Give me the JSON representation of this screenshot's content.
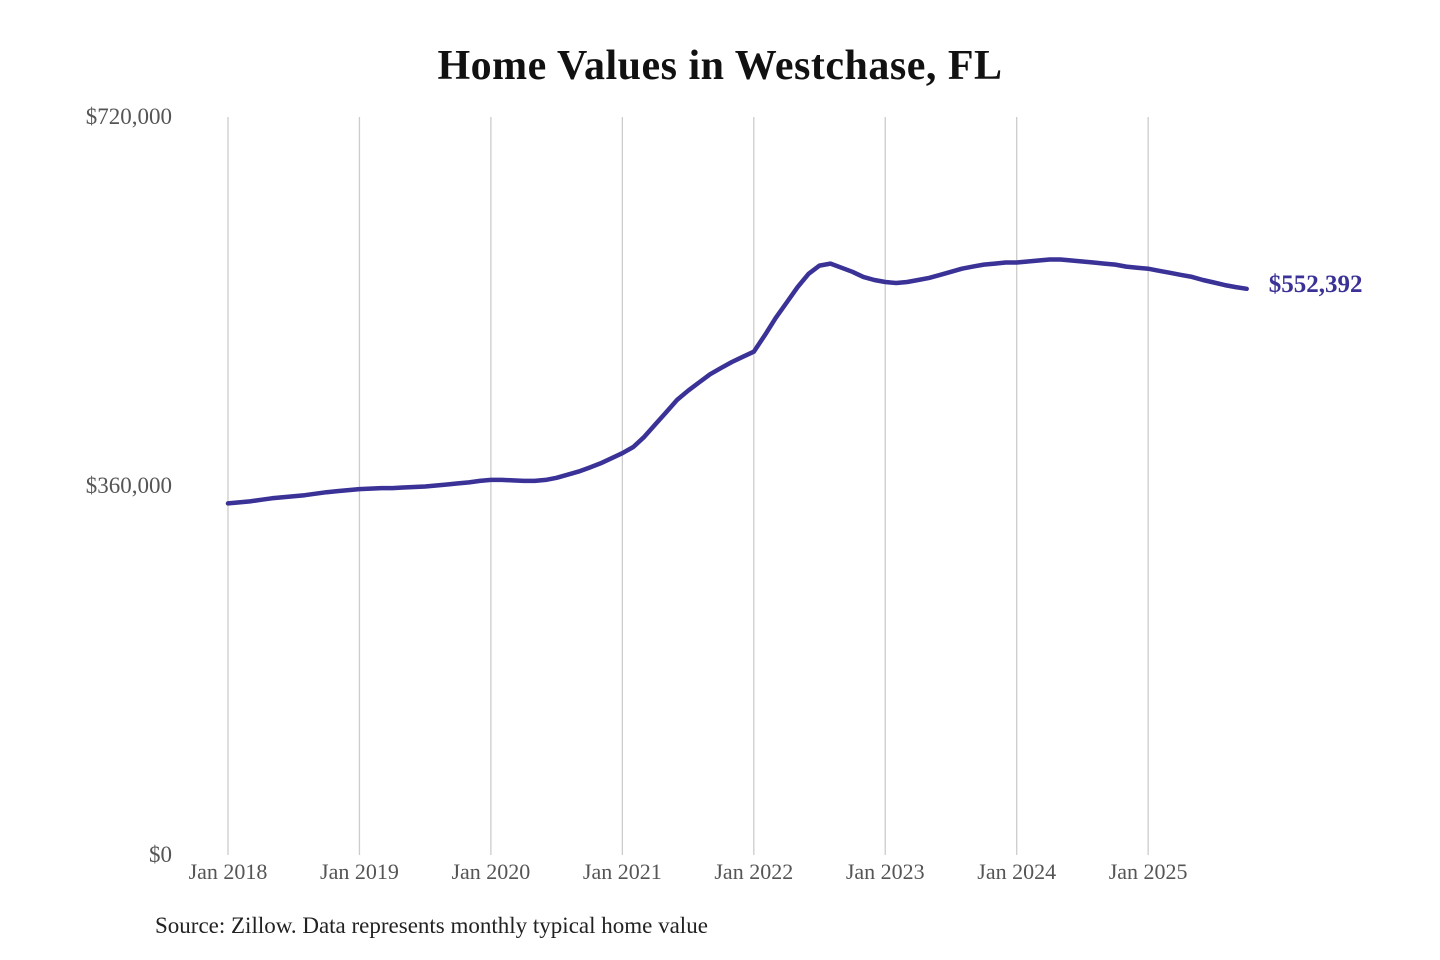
{
  "title": "Home Values in Westchase, FL",
  "source_note": "Source: Zillow. Data represents monthly typical home value",
  "end_label": "$552,392",
  "colors": {
    "line": "#3A3296",
    "end_label": "#3A3296",
    "grid": "#cccccc",
    "axis_text": "#555555",
    "title_text": "#111111",
    "source_text": "#222222",
    "background": "#ffffff"
  },
  "chart_data": {
    "type": "line",
    "title": "Home Values in Westchase, FL",
    "xlabel": "",
    "ylabel": "",
    "x_tick_labels": [
      "Jan 2018",
      "Jan 2019",
      "Jan 2020",
      "Jan 2021",
      "Jan 2022",
      "Jan 2023",
      "Jan 2024",
      "Jan 2025"
    ],
    "y_ticks": [
      {
        "label": "$0",
        "value": 0
      },
      {
        "label": "$360,000",
        "value": 360000
      },
      {
        "label": "$720,000",
        "value": 720000
      }
    ],
    "ylim": [
      0,
      720000
    ],
    "grid": "vertical-only",
    "legend": "none",
    "series": [
      {
        "name": "Monthly typical home value",
        "start_month": "2018-01",
        "interval": "monthly",
        "final_value": 552392,
        "final_value_label": "$552,392",
        "values": [
          343000,
          344000,
          345000,
          346500,
          348000,
          349000,
          350000,
          351000,
          352500,
          354000,
          355000,
          356000,
          357000,
          357500,
          358000,
          358000,
          358500,
          359000,
          359500,
          360500,
          361500,
          362500,
          363500,
          365000,
          366000,
          366000,
          365500,
          365000,
          365000,
          366000,
          368000,
          371000,
          374000,
          378000,
          382000,
          387000,
          392000,
          398000,
          408000,
          420000,
          432000,
          444000,
          453000,
          461000,
          469000,
          475000,
          481000,
          486000,
          491000,
          507000,
          524000,
          539000,
          554000,
          567000,
          575000,
          577000,
          573000,
          569000,
          564000,
          561000,
          559000,
          558000,
          559000,
          561000,
          563000,
          566000,
          569000,
          572000,
          574000,
          576000,
          577000,
          578000,
          578000,
          579000,
          580000,
          581000,
          581000,
          580000,
          579000,
          578000,
          577000,
          576000,
          574000,
          573000,
          572000,
          570000,
          568000,
          566000,
          564000,
          561000,
          558500,
          556000,
          554000,
          552392
        ]
      }
    ]
  }
}
